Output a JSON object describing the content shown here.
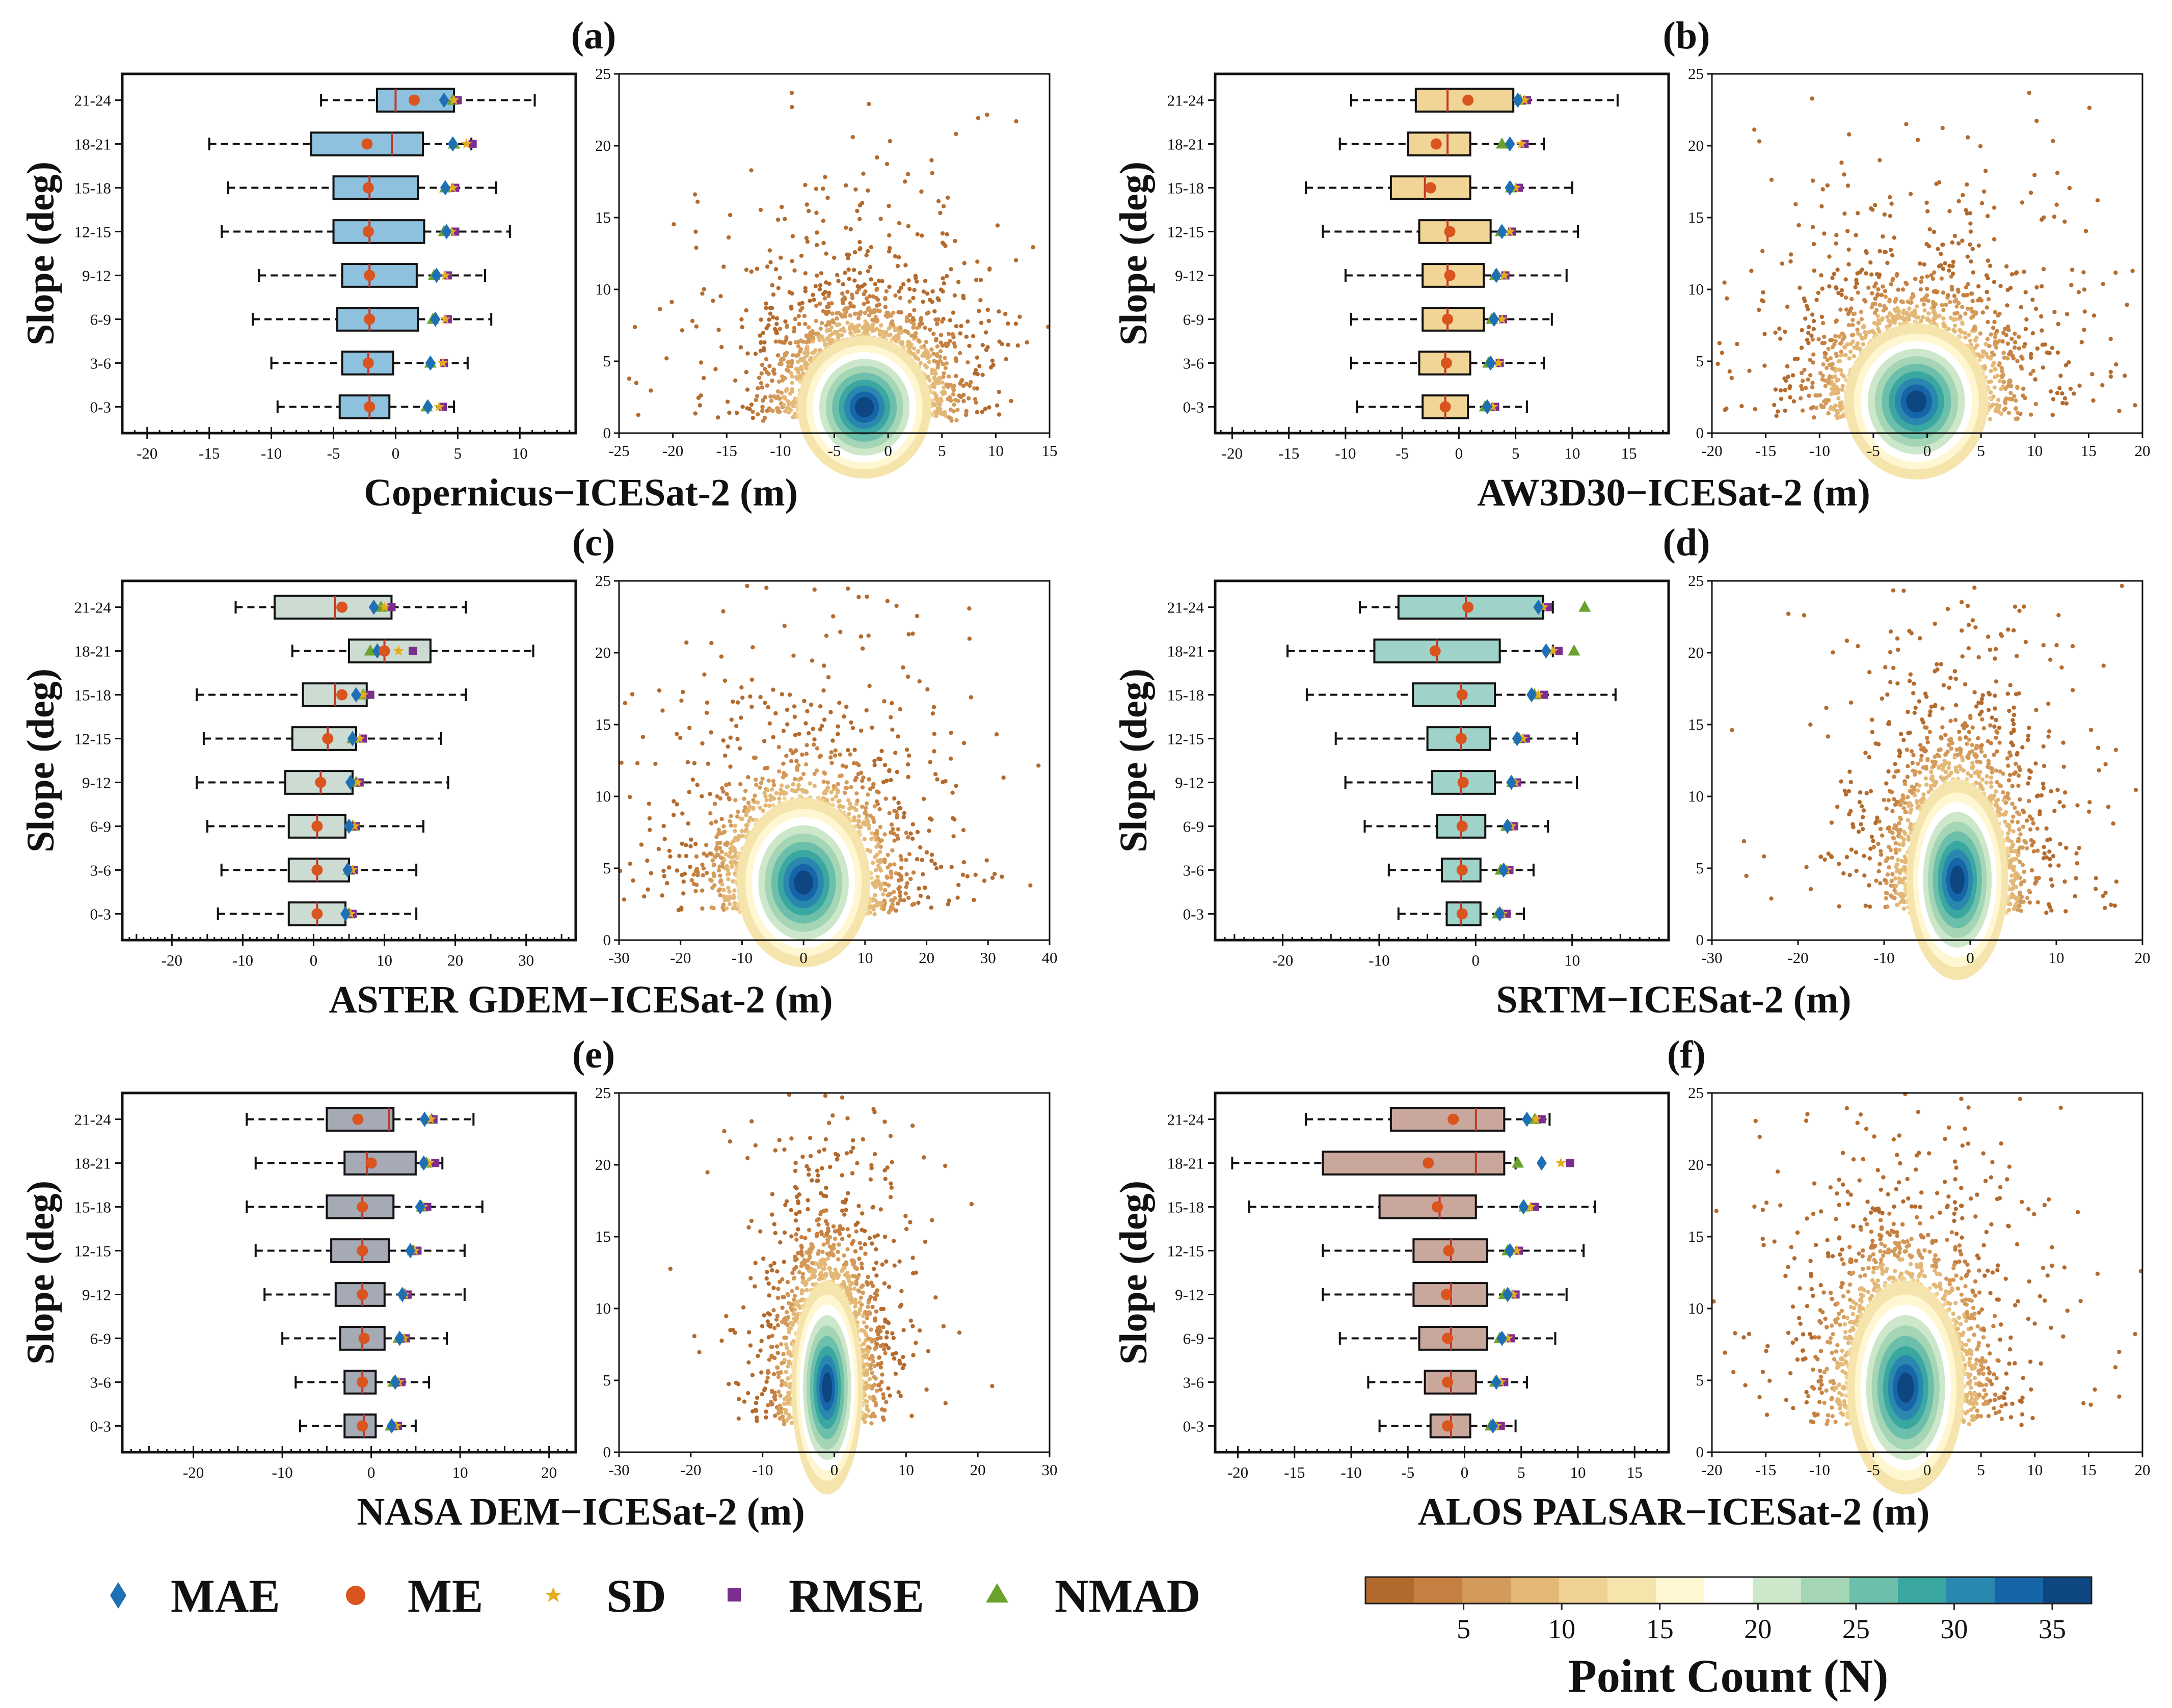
{
  "figure": {
    "panels": [
      {
        "id": "a",
        "label": "(a)",
        "xlabel": "Copernicus−ICESat-2 (m)",
        "box_color": "#8ec1de",
        "box_data": {
          "type": "box",
          "ylabel": "Slope (deg)",
          "categories": [
            "0-3",
            "3-6",
            "6-9",
            "9-12",
            "12-15",
            "15-18",
            "18-21",
            "21-24"
          ],
          "xlim": [
            -22,
            14.5
          ],
          "xticks": [
            -20,
            -15,
            -10,
            -5,
            0,
            5,
            10
          ],
          "q1": [
            -4.5,
            -4.3,
            -4.7,
            -4.3,
            -5,
            -5,
            -6.8,
            -1.5
          ],
          "median": [
            -2.1,
            -2.2,
            -2.1,
            -2.1,
            -2.1,
            -2.1,
            -0.3,
            0
          ],
          "q3": [
            -0.5,
            -0.2,
            1.8,
            1.7,
            2.3,
            1.8,
            2.2,
            4.7
          ],
          "wlo": [
            -9.5,
            -10,
            -11.5,
            -11,
            -14,
            -13.5,
            -15,
            -6
          ],
          "whi": [
            4.7,
            5.8,
            7.7,
            7.2,
            9.2,
            8.1,
            6.1,
            11.2
          ],
          "me": [
            -2.1,
            -2.2,
            -2.1,
            -2.1,
            -2.2,
            -2.2,
            -2.3,
            1.5
          ],
          "mae": [
            2.6,
            2.8,
            3.2,
            3.3,
            4.1,
            4,
            4.6,
            3.9
          ],
          "sd": [
            3.5,
            3.8,
            4,
            4,
            4.5,
            4.6,
            5.7,
            4.7
          ],
          "rmse": [
            3.8,
            3.9,
            4.2,
            4.2,
            4.8,
            4.8,
            6.2,
            5
          ],
          "nmad": [
            2.5,
            2.8,
            3,
            3.1,
            3.9,
            4,
            4.7,
            4.6
          ]
        },
        "scatter_data": {
          "type": "scatter",
          "xlim": [
            -25,
            15
          ],
          "ylim": [
            0,
            25
          ],
          "xticks": [
            -25,
            -20,
            -15,
            -10,
            -5,
            0,
            5,
            10,
            15
          ],
          "yticks": [
            0,
            5,
            10,
            15,
            20,
            25
          ],
          "center": [
            -2.2,
            1.8
          ],
          "spread": [
            4,
            3.2
          ]
        }
      },
      {
        "id": "b",
        "label": "(b)",
        "xlabel": "AW3D30−ICESat-2 (m)",
        "box_color": "#f1d596",
        "box_data": {
          "type": "box",
          "ylabel": "Slope (deg)",
          "categories": [
            "0-3",
            "3-6",
            "6-9",
            "9-12",
            "12-15",
            "15-18",
            "18-21",
            "21-24"
          ],
          "xlim": [
            -21.5,
            18.5
          ],
          "xticks": [
            -20,
            -15,
            -10,
            -5,
            0,
            5,
            10,
            15
          ],
          "q1": [
            -3.2,
            -3.5,
            -3.2,
            -3.2,
            -3.5,
            -6,
            -4.5,
            -3.8
          ],
          "median": [
            -1.2,
            -1.2,
            -1,
            -1,
            -1,
            -3,
            -1,
            -1
          ],
          "q3": [
            0.8,
            1,
            2.2,
            2.2,
            2.8,
            1,
            1,
            4.8
          ],
          "wlo": [
            -9,
            -9.5,
            -9.5,
            -10,
            -12,
            -13.5,
            -10.5,
            -9.5
          ],
          "whi": [
            6,
            7.5,
            8.2,
            9.5,
            10.5,
            10,
            7.5,
            14
          ],
          "me": [
            -1.2,
            -1.1,
            -1,
            -0.8,
            -0.8,
            -2.5,
            -2,
            0.8
          ],
          "mae": [
            2.5,
            2.8,
            3.1,
            3.3,
            3.8,
            4.5,
            4.5,
            5.2
          ],
          "sd": [
            3,
            3.5,
            3.8,
            4,
            4.5,
            5,
            5.5,
            5.8
          ],
          "rmse": [
            3.2,
            3.6,
            3.9,
            4.1,
            4.7,
            5.3,
            5.8,
            6
          ],
          "nmad": [
            2.3,
            2.6,
            2.9,
            3.2,
            3.7,
            4.6,
            3.8,
            5.4
          ]
        },
        "scatter_data": {
          "type": "scatter",
          "xlim": [
            -20,
            20
          ],
          "ylim": [
            0,
            25
          ],
          "xticks": [
            -20,
            -15,
            -10,
            -5,
            0,
            5,
            10,
            15,
            20
          ],
          "yticks": [
            0,
            5,
            10,
            15,
            20,
            25
          ],
          "center": [
            -1,
            2.2
          ],
          "spread": [
            4.3,
            3.5
          ]
        }
      },
      {
        "id": "c",
        "label": "(c)",
        "xlabel": "ASTER GDEM−ICESat-2 (m)",
        "box_color": "#ccdcd2",
        "box_data": {
          "type": "box",
          "ylabel": "Slope (deg)",
          "categories": [
            "0-3",
            "3-6",
            "6-9",
            "9-12",
            "12-15",
            "15-18",
            "18-21",
            "21-24"
          ],
          "xlim": [
            -27,
            37
          ],
          "xticks": [
            -20,
            -10,
            0,
            10,
            20,
            30
          ],
          "q1": [
            -3.5,
            -3.5,
            -3.5,
            -4,
            -3,
            -1.5,
            5,
            -5.5
          ],
          "median": [
            0.5,
            0.5,
            0.5,
            1,
            2,
            3,
            10,
            3
          ],
          "q3": [
            4.5,
            5,
            4.5,
            5.5,
            6,
            7.5,
            16.5,
            11
          ],
          "wlo": [
            -13.5,
            -13,
            -15,
            -16.5,
            -15.5,
            -16.5,
            -3,
            -11
          ],
          "whi": [
            14.5,
            14.5,
            15.5,
            19,
            18,
            21.5,
            31,
            21.5
          ],
          "me": [
            0.5,
            0.5,
            0.5,
            1,
            2,
            4,
            10,
            4
          ],
          "mae": [
            4.5,
            4.8,
            5,
            5.2,
            5.5,
            6,
            9,
            8.5
          ],
          "sd": [
            5.2,
            5.5,
            5.8,
            6.2,
            6.5,
            7,
            12,
            10
          ],
          "rmse": [
            5.5,
            5.7,
            6,
            6.5,
            7,
            8,
            14,
            11
          ],
          "nmad": [
            5,
            5,
            5.5,
            6,
            5.5,
            7,
            8,
            9.5
          ]
        },
        "scatter_data": {
          "type": "scatter",
          "xlim": [
            -30,
            40
          ],
          "ylim": [
            0,
            25
          ],
          "xticks": [
            -30,
            -20,
            -10,
            0,
            10,
            20,
            30,
            40
          ],
          "yticks": [
            0,
            5,
            10,
            15,
            20,
            25
          ],
          "center": [
            0,
            4
          ],
          "spread": [
            7,
            3.8
          ]
        }
      },
      {
        "id": "d",
        "label": "(d)",
        "xlabel": "SRTM−ICESat-2 (m)",
        "box_color": "#9fd3c9",
        "box_data": {
          "type": "box",
          "ylabel": "Slope (deg)",
          "categories": [
            "0-3",
            "3-6",
            "6-9",
            "9-12",
            "12-15",
            "15-18",
            "18-21",
            "21-24"
          ],
          "xlim": [
            -27,
            20
          ],
          "xticks": [
            -20,
            -10,
            0,
            10
          ],
          "q1": [
            -3,
            -3.5,
            -4,
            -4.5,
            -5,
            -6.5,
            -10.5,
            -8
          ],
          "median": [
            -1.5,
            -1.5,
            -1.5,
            -1.5,
            -1.5,
            -1.5,
            -4,
            -1
          ],
          "q3": [
            0.5,
            0.5,
            1,
            2,
            1.5,
            2,
            2.5,
            7
          ],
          "wlo": [
            -8,
            -9,
            -11.5,
            -13.5,
            -14.5,
            -17.5,
            -19.5,
            -12
          ],
          "whi": [
            5,
            6,
            7.5,
            10.5,
            10.5,
            14.5,
            8,
            8
          ],
          "me": [
            -1.4,
            -1.4,
            -1.4,
            -1.3,
            -1.5,
            -1.4,
            -4.2,
            -0.8
          ],
          "mae": [
            2.5,
            2.9,
            3.3,
            3.7,
            4.3,
            5.8,
            7.3,
            6.5
          ],
          "sd": [
            2.8,
            3.2,
            3.7,
            4.1,
            4.9,
            6.5,
            8,
            7
          ],
          "rmse": [
            3.2,
            3.5,
            4,
            4.3,
            5.2,
            7.1,
            8.6,
            7.5
          ],
          "nmad": [
            2.3,
            2.6,
            3.2,
            3.8,
            4.5,
            6.1,
            10.2,
            11.3
          ]
        },
        "scatter_data": {
          "type": "scatter",
          "xlim": [
            -30,
            20
          ],
          "ylim": [
            0,
            25
          ],
          "xticks": [
            -30,
            -20,
            -10,
            0,
            10,
            20
          ],
          "yticks": [
            0,
            5,
            10,
            15,
            20,
            25
          ],
          "center": [
            -1.5,
            4.2
          ],
          "spread": [
            3.8,
            4.5
          ]
        }
      },
      {
        "id": "e",
        "label": "(e)",
        "xlabel": "NASA DEM−ICESat-2 (m)",
        "box_color": "#a5aab5",
        "box_data": {
          "type": "box",
          "ylabel": "Slope (deg)",
          "categories": [
            "0-3",
            "3-6",
            "6-9",
            "9-12",
            "12-15",
            "15-18",
            "18-21",
            "21-24"
          ],
          "xlim": [
            -28,
            23
          ],
          "xticks": [
            -20,
            -10,
            0,
            10,
            20
          ],
          "q1": [
            -3,
            -3,
            -3.5,
            -4,
            -4.5,
            -5,
            -3,
            -5
          ],
          "median": [
            -0.8,
            -1,
            -1,
            -1,
            -1,
            -1,
            -0.5,
            2
          ],
          "q3": [
            0.5,
            0.5,
            1.5,
            1.5,
            2,
            2.5,
            5,
            2.5
          ],
          "wlo": [
            -8,
            -8.5,
            -10,
            -12,
            -13,
            -14,
            -13,
            -14
          ],
          "whi": [
            5,
            6.5,
            8.5,
            10.5,
            10.5,
            12.5,
            8,
            11.5
          ],
          "me": [
            -1,
            -1,
            -0.8,
            -1,
            -1,
            -1,
            0,
            -1.5
          ],
          "mae": [
            2.3,
            2.7,
            3.2,
            3.5,
            4.4,
            5.5,
            5.9,
            6
          ],
          "sd": [
            2.8,
            3.1,
            3.7,
            3.8,
            4.9,
            5.8,
            6.5,
            6.7
          ],
          "rmse": [
            3,
            3.4,
            3.9,
            4.1,
            5.2,
            6.3,
            7.2,
            7
          ],
          "nmad": [
            2.2,
            2.5,
            3.1,
            3.8,
            4.7,
            5.7,
            6.2,
            6.8
          ]
        },
        "scatter_data": {
          "type": "scatter",
          "xlim": [
            -30,
            30
          ],
          "ylim": [
            0,
            25
          ],
          "xticks": [
            -30,
            -20,
            -10,
            0,
            10,
            20,
            30
          ],
          "yticks": [
            0,
            5,
            10,
            15,
            20,
            25
          ],
          "center": [
            -1,
            4.5
          ],
          "spread": [
            3.2,
            4.8
          ]
        }
      },
      {
        "id": "f",
        "label": "(f)",
        "xlabel": "ALOS PALSAR−ICESat-2 (m)",
        "box_color": "#caa79c",
        "box_data": {
          "type": "box",
          "ylabel": "Slope (deg)",
          "categories": [
            "0-3",
            "3-6",
            "6-9",
            "9-12",
            "12-15",
            "15-18",
            "18-21",
            "21-24"
          ],
          "xlim": [
            -22,
            18
          ],
          "xticks": [
            -20,
            -15,
            -10,
            -5,
            0,
            5,
            10,
            15
          ],
          "q1": [
            -3,
            -3.5,
            -4,
            -4.5,
            -4.5,
            -7.5,
            -12.5,
            -6.5
          ],
          "median": [
            -1.2,
            -1.2,
            -1.2,
            -1.2,
            -1.2,
            -2.2,
            1,
            1
          ],
          "q3": [
            0.5,
            1,
            2,
            2,
            2,
            1,
            3.5,
            3.5
          ],
          "wlo": [
            -7.5,
            -8.5,
            -11,
            -12.5,
            -12.5,
            -19,
            -20.5,
            -14
          ],
          "whi": [
            4.5,
            5.5,
            8,
            9,
            10.5,
            11.5,
            4.5,
            7.5
          ],
          "me": [
            -1.5,
            -1.5,
            -1.5,
            -1.6,
            -1.4,
            -2.4,
            -3.2,
            -1
          ],
          "mae": [
            2.5,
            2.8,
            3.3,
            3.8,
            4,
            5.2,
            6.8,
            5.5
          ],
          "sd": [
            2.8,
            3.2,
            3.8,
            4.3,
            4.6,
            5.8,
            8.5,
            6.3
          ],
          "rmse": [
            3.2,
            3.5,
            4.1,
            4.5,
            4.8,
            6.2,
            9.3,
            6.8
          ],
          "nmad": [
            2.3,
            2.7,
            3.1,
            3.5,
            3.8,
            5.3,
            4.7,
            6.2
          ]
        },
        "scatter_data": {
          "type": "scatter",
          "xlim": [
            -20,
            20
          ],
          "ylim": [
            0,
            25
          ],
          "xticks": [
            -20,
            -15,
            -10,
            -5,
            0,
            5,
            10,
            15,
            20
          ],
          "yticks": [
            0,
            5,
            10,
            15,
            20,
            25
          ],
          "center": [
            -2,
            4.5
          ],
          "spread": [
            3.5,
            4.8
          ]
        }
      }
    ],
    "legend": [
      {
        "name": "MAE",
        "marker": "diamond",
        "color": "#1f6fb4"
      },
      {
        "name": "ME",
        "marker": "circle",
        "color": "#d9541e"
      },
      {
        "name": "SD",
        "marker": "star",
        "color": "#e6ac1e"
      },
      {
        "name": "RMSE",
        "marker": "square",
        "color": "#7b2e8e"
      },
      {
        "name": "NMAD",
        "marker": "triangle",
        "color": "#6aa22c"
      }
    ],
    "colorbar": {
      "title": "Point Count (N)",
      "ticks": [
        5,
        10,
        15,
        20,
        25,
        30,
        35
      ],
      "range": [
        0,
        37
      ],
      "colors": [
        "#b36a2d",
        "#c47f41",
        "#d39a5a",
        "#e3b877",
        "#efd193",
        "#f6e4ad",
        "#fef7d2",
        "#ffffff",
        "#cce7c9",
        "#a4d5b5",
        "#6cbfaa",
        "#3aa7a0",
        "#2a88b0",
        "#1565a8",
        "#0d4681"
      ]
    }
  }
}
